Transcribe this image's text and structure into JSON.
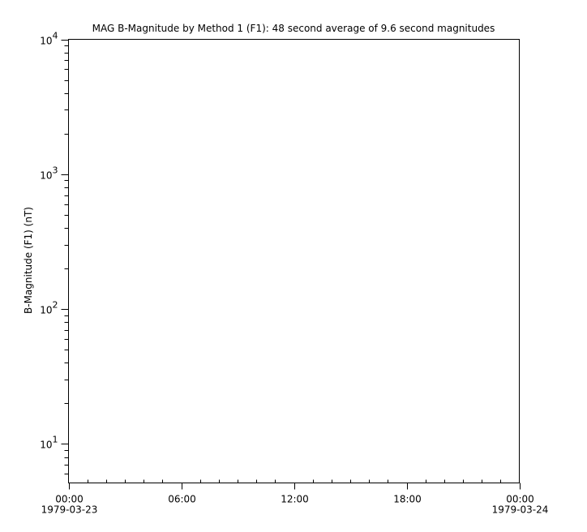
{
  "chart_data": {
    "type": "line",
    "title": "MAG  B-Magnitude by Method 1 (F1): 48 second average of 9.6 second magnitudes",
    "ylabel": "B-Magnitude (F1) (nT)",
    "xlabel": "",
    "yscale": "log",
    "ylim": [
      5.14,
      10000
    ],
    "y_ticks": [
      {
        "value": 10,
        "base": "10",
        "exp": "1"
      },
      {
        "value": 100,
        "base": "10",
        "exp": "2"
      },
      {
        "value": 1000,
        "base": "10",
        "exp": "3"
      },
      {
        "value": 10000,
        "base": "10",
        "exp": "4"
      }
    ],
    "xlim_hours": [
      0,
      24
    ],
    "x_ticks": [
      {
        "hour": 0,
        "time": "00:00",
        "date": "1979-03-23"
      },
      {
        "hour": 6,
        "time": "06:00",
        "date": ""
      },
      {
        "hour": 12,
        "time": "12:00",
        "date": ""
      },
      {
        "hour": 18,
        "time": "18:00",
        "date": ""
      },
      {
        "hour": 24,
        "time": "00:00",
        "date": "1979-03-24"
      }
    ],
    "grid": false,
    "series": []
  }
}
